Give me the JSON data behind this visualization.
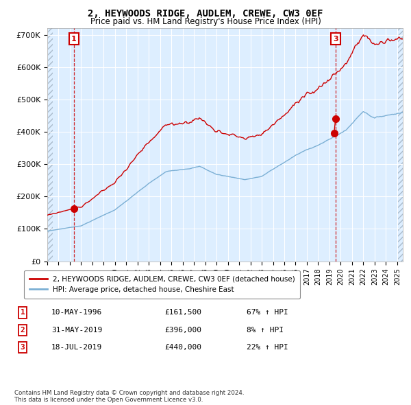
{
  "title": "2, HEYWOODS RIDGE, AUDLEM, CREWE, CW3 0EF",
  "subtitle": "Price paid vs. HM Land Registry's House Price Index (HPI)",
  "hpi_label": "HPI: Average price, detached house, Cheshire East",
  "property_label": "2, HEYWOODS RIDGE, AUDLEM, CREWE, CW3 0EF (detached house)",
  "red_color": "#cc0000",
  "blue_color": "#7bafd4",
  "bg_color": "#ddeeff",
  "sale1_date": 1996.36,
  "sale1_price": 161500,
  "sale2_date": 2019.41,
  "sale2_price": 396000,
  "sale3_date": 2019.54,
  "sale3_price": 440000,
  "ylim": [
    0,
    720000
  ],
  "xlim": [
    1994.0,
    2025.5
  ],
  "footer": "Contains HM Land Registry data © Crown copyright and database right 2024.\nThis data is licensed under the Open Government Licence v3.0.",
  "table_rows": [
    [
      "1",
      "10-MAY-1996",
      "£161,500",
      "67% ↑ HPI"
    ],
    [
      "2",
      "31-MAY-2019",
      "£396,000",
      "8% ↑ HPI"
    ],
    [
      "3",
      "18-JUL-2019",
      "£440,000",
      "22% ↑ HPI"
    ]
  ]
}
